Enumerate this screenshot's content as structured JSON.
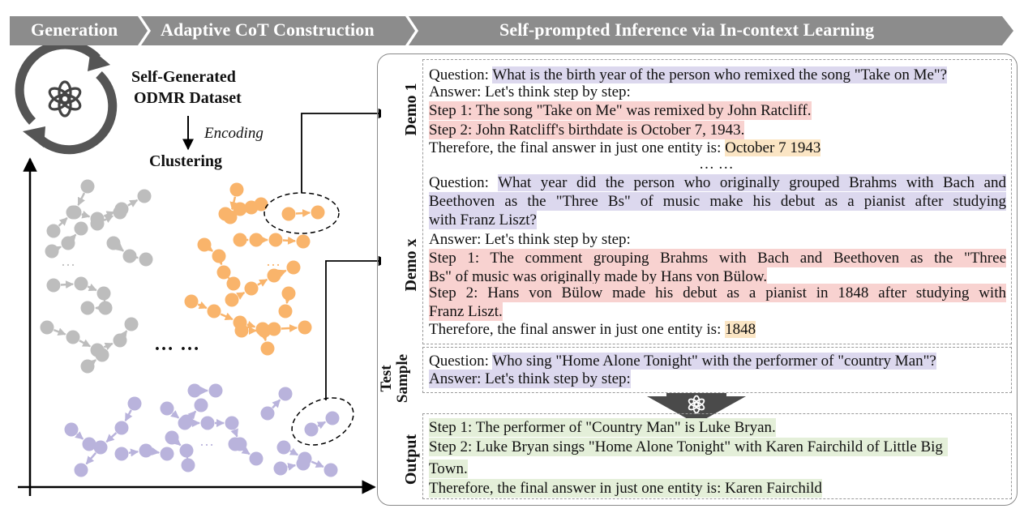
{
  "banner": {
    "stage1": "Generation",
    "stage2": "Adaptive CoT Construction",
    "stage3": "Self-prompted Inference via In-context Learning",
    "colors": {
      "fill": "#8c8c8c",
      "text": "#ffffff"
    }
  },
  "left": {
    "dataset_title_line1": "Self-Generated",
    "dataset_title_line2": "ODMR Dataset",
    "encoding_label": "Encoding",
    "clustering_label": "Clustering",
    "ellipsis_center": "… …",
    "ellipsis_small_gray": "…",
    "ellipsis_small_orange": "…",
    "ellipsis_small_purple": "…",
    "icon": "openai-logo-icon",
    "cycle_icon": "refresh-cycle-icon",
    "cluster_colors": {
      "gray": "#bdbdbd",
      "orange": "#f9b46b",
      "purple": "#b9b3dc"
    }
  },
  "demo1": {
    "label": "Demo 1",
    "question_prefix": "Question:",
    "question": "What is the birth year of the person who remixed the song \"Take on Me\"?",
    "answer_intro": "Answer: Let's think step by step:",
    "step1": "Step 1: The song \"Take on Me\" was remixed by John Ratcliff.",
    "step2": "Step 2: John Ratcliff's birthdate is October 7, 1943.",
    "final_prefix": "Therefore, the final answer in just one entity is:",
    "final_answer": "October 7 1943",
    "gap": "… …"
  },
  "demox": {
    "label": "Demo x",
    "question_prefix": "Question:",
    "question_line1": "What year did the person who originally grouped Brahms with Bach and",
    "question_line2": "Beethoven as the \"Three Bs\" of music make his debut as a pianist after studying",
    "question_line3": "with Franz Liszt?",
    "answer_intro": "Answer: Let's think step by step:",
    "step1_line1": "Step 1: The comment grouping Brahms with Bach and Beethoven as the \"Three",
    "step1_line2": "Bs\" of music was originally made by Hans von Bülow.",
    "step2_line1": "Step 2: Hans von Bülow made his debut as a pianist in 1848 after studying with",
    "step2_line2": "Franz Liszt.",
    "final_prefix": "Therefore, the final answer in just one entity is:",
    "final_answer": "1848"
  },
  "test": {
    "label_line1": "Test",
    "label_line2": "Sample",
    "question_prefix": "Question:",
    "question": "Who sing \"Home Alone Tonight\" with the performer of \"country Man\"?",
    "answer_intro": "Answer: Let's think step by step:"
  },
  "output": {
    "label": "Output",
    "step1": "Step 1: The performer of \"Country Man\" is Luke Bryan.",
    "step2_line1": "Step 2: Luke Bryan sings \"Home Alone Tonight\" with Karen Fairchild of Little Big",
    "step2_line2": "Town.",
    "final": "Therefore, the final answer in just one entity is: Karen Fairchild"
  },
  "highlight_colors": {
    "question": "#dcd8ee",
    "step": "#f8d2d0",
    "answer": "#fbe5c4",
    "output": "#e4efd9"
  }
}
